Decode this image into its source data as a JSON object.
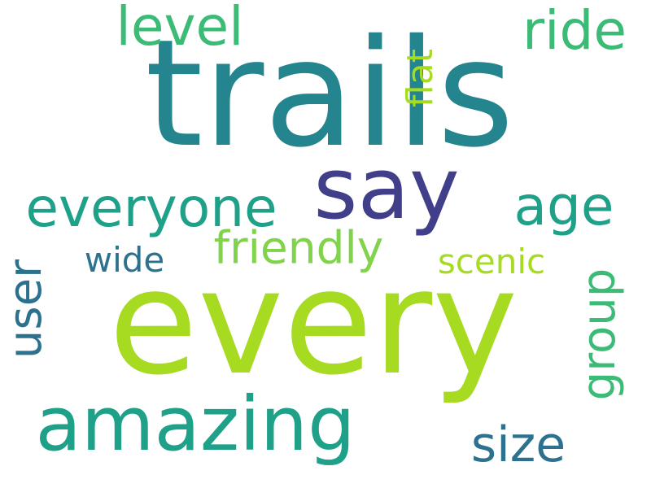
{
  "words": [
    {
      "text": "trails",
      "color": "#25858e"
    },
    {
      "text": "every",
      "color": "#a6db22"
    },
    {
      "text": "say",
      "color": "#413f8a"
    },
    {
      "text": "amazing",
      "color": "#1fa088"
    },
    {
      "text": "everyone",
      "color": "#1fa088"
    },
    {
      "text": "friendly",
      "color": "#82d34c"
    },
    {
      "text": "level",
      "color": "#3bbb75"
    },
    {
      "text": "ride",
      "color": "#3bbb75"
    },
    {
      "text": "age",
      "color": "#1fa088"
    },
    {
      "text": "user",
      "color": "#2c728e"
    },
    {
      "text": "group",
      "color": "#3bbb75"
    },
    {
      "text": "size",
      "color": "#2c728e"
    },
    {
      "text": "flat",
      "color": "#a6db22"
    },
    {
      "text": "scenic",
      "color": "#a6db22"
    },
    {
      "text": "wide",
      "color": "#2c728e"
    }
  ]
}
